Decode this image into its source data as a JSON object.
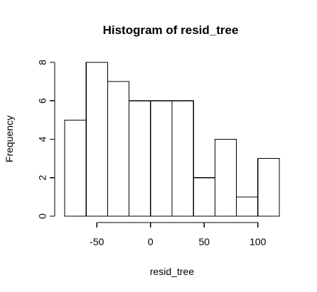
{
  "chart_data": {
    "type": "bar",
    "title": "Histogram of resid_tree",
    "xlabel": "resid_tree",
    "ylabel": "Frequency",
    "bin_edges": [
      -80,
      -60,
      -40,
      -20,
      0,
      20,
      40,
      60,
      80,
      100,
      120
    ],
    "values": [
      5,
      8,
      7,
      6,
      6,
      6,
      2,
      4,
      1,
      3
    ],
    "xlim": [
      -80,
      120
    ],
    "ylim": [
      0,
      8
    ],
    "xticks": [
      -50,
      0,
      50,
      100
    ],
    "xtick_labels": [
      "-50",
      "0",
      "50",
      "100"
    ],
    "yticks": [
      0,
      2,
      4,
      6,
      8
    ],
    "ytick_labels": [
      "0",
      "2",
      "4",
      "6",
      "8"
    ],
    "grid": false,
    "colors": {
      "bar_fill": "#ffffff",
      "bar_stroke": "#000000"
    }
  }
}
